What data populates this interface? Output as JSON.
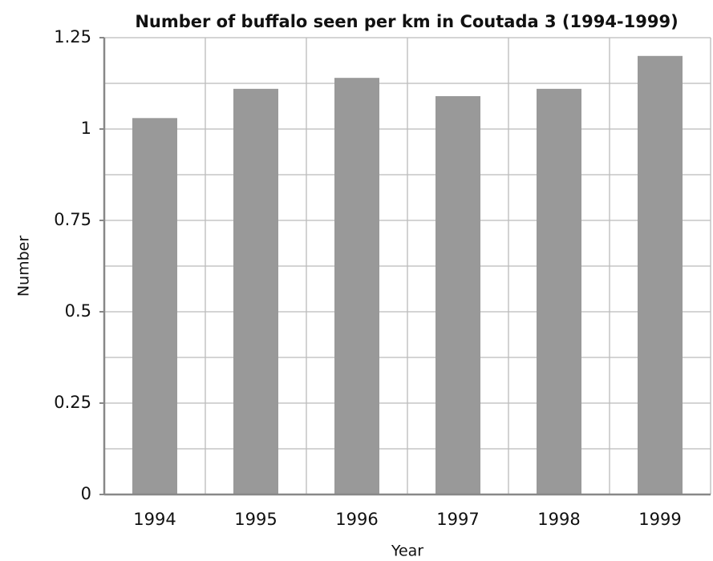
{
  "chart_data": {
    "type": "bar",
    "title": "Number of buffalo seen per km in Coutada 3 (1994-1999)",
    "x_label": "Year",
    "y_label": "Number",
    "categories": [
      "1994",
      "1995",
      "1996",
      "1997",
      "1998",
      "1999"
    ],
    "values": [
      1.03,
      1.11,
      1.14,
      1.09,
      1.11,
      1.2
    ],
    "color": "#999999",
    "ylim": [
      0,
      1.25
    ],
    "yticks": [
      0,
      0.25,
      0.5,
      0.75,
      1,
      1.25
    ],
    "minor_yticks": [
      0.125,
      0.375,
      0.625,
      0.875,
      1.125
    ],
    "grid": true
  }
}
